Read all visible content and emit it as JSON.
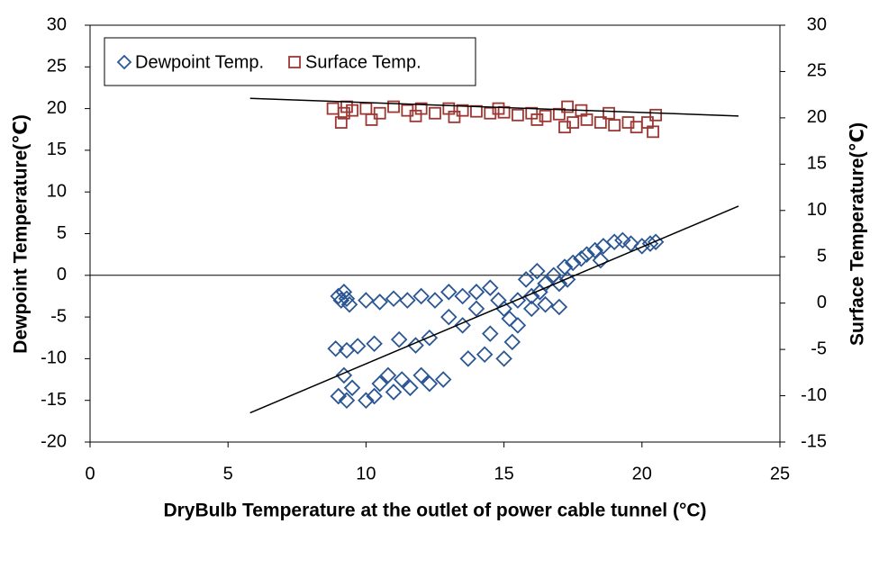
{
  "chart_data": {
    "type": "scatter",
    "x_label": "DryBulb Temperature at the outlet of power cable tunnel (°C)",
    "y_label": "Dewpoint Temperature(℃)",
    "y2_label": "Surface Temperature(℃)",
    "xlim": [
      0,
      25
    ],
    "xticks": [
      0,
      5,
      10,
      15,
      20,
      25
    ],
    "ylim": [
      -20,
      30
    ],
    "yticks": [
      -20,
      -15,
      -10,
      -5,
      0,
      5,
      10,
      15,
      20,
      25,
      30
    ],
    "y2lim": [
      -15,
      30
    ],
    "y2ticks": [
      -15,
      -10,
      -5,
      0,
      5,
      10,
      15,
      20,
      25,
      30
    ],
    "hline": 0,
    "legend": "upper-left",
    "series": [
      {
        "name": "Dewpoint Temp.",
        "color": "#2b5694",
        "marker": "diamond",
        "x": [
          9,
          9.2,
          9.1,
          9.4,
          9.3,
          10,
          10.5,
          11,
          11.5,
          12,
          12.5,
          13,
          13.5,
          14,
          14.5,
          8.9,
          9.3,
          9.7,
          10.3,
          11.2,
          11.8,
          12.3,
          9,
          9.3,
          9.5,
          10,
          10.3,
          10.5,
          10.8,
          11,
          11.3,
          11.6,
          12,
          12.3,
          12.8,
          9.2,
          13,
          13.5,
          14,
          14.5,
          13.7,
          14.3,
          15,
          15.3,
          15.5,
          15,
          15.5,
          16,
          16.3,
          16.5,
          16.8,
          17,
          17.2,
          17.5,
          17.8,
          18,
          18.3,
          18.6,
          19,
          19.3,
          19.6,
          20,
          20.3,
          20.5,
          16,
          16.5,
          17,
          15.2,
          14.8,
          15.8,
          16.2,
          17.3,
          18.5
        ],
        "values": [
          -2.5,
          -2,
          -3,
          -3.5,
          -2.8,
          -3,
          -3.2,
          -2.8,
          -3,
          -2.5,
          -3,
          -2,
          -2.5,
          -2,
          -1.5,
          -8.8,
          -9,
          -8.5,
          -8.2,
          -7.7,
          -8.4,
          -7.5,
          -14.5,
          -15,
          -13.5,
          -15,
          -14.5,
          -13,
          -12,
          -14,
          -12.5,
          -13.5,
          -12,
          -13,
          -12.5,
          -12,
          -5,
          -6,
          -4,
          -7,
          -10,
          -9.5,
          -10,
          -8,
          -6,
          -4,
          -3,
          -4,
          -2,
          -1,
          0,
          -1,
          1,
          1.5,
          2,
          2.5,
          3,
          3.5,
          4,
          4.2,
          3.8,
          3.5,
          3.8,
          4,
          -2.5,
          -3.5,
          -3.8,
          -5.2,
          -3,
          -0.5,
          0.5,
          -0.5,
          1.8
        ]
      },
      {
        "name": "Surface Temp.",
        "color": "#9b3834",
        "marker": "square",
        "axis": "y2",
        "x": [
          8.8,
          9.2,
          9.5,
          9.1,
          10,
          10.5,
          11,
          11.5,
          12,
          12.5,
          13,
          13.5,
          14,
          14.5,
          15,
          15.5,
          16,
          16.5,
          17,
          17.3,
          17.5,
          17.8,
          18,
          18.5,
          19,
          19.5,
          19.8,
          20.2,
          20.4,
          20.5,
          9.3,
          10.2,
          11.8,
          13.2,
          14.8,
          16.2,
          17.2,
          18.8
        ],
        "values": [
          21,
          20.5,
          20.8,
          19.5,
          21,
          20.5,
          21.2,
          20.8,
          21,
          20.5,
          21,
          20.8,
          20.7,
          20.5,
          20.6,
          20.3,
          20.5,
          20.2,
          20.4,
          21.2,
          19.5,
          20.8,
          19.8,
          19.5,
          19.2,
          19.5,
          19,
          19.5,
          18.5,
          20.3,
          21.2,
          19.8,
          20.2,
          20.1,
          21,
          19.8,
          19,
          20.5
        ]
      }
    ],
    "trendlines": [
      {
        "x": [
          5.8,
          23.5
        ],
        "values": [
          -16.5,
          8.3
        ],
        "color": "#000000"
      },
      {
        "x": [
          5.8,
          23.5
        ],
        "values": [
          22.1,
          20.2
        ],
        "color": "#000000",
        "axis": "y2"
      }
    ]
  }
}
